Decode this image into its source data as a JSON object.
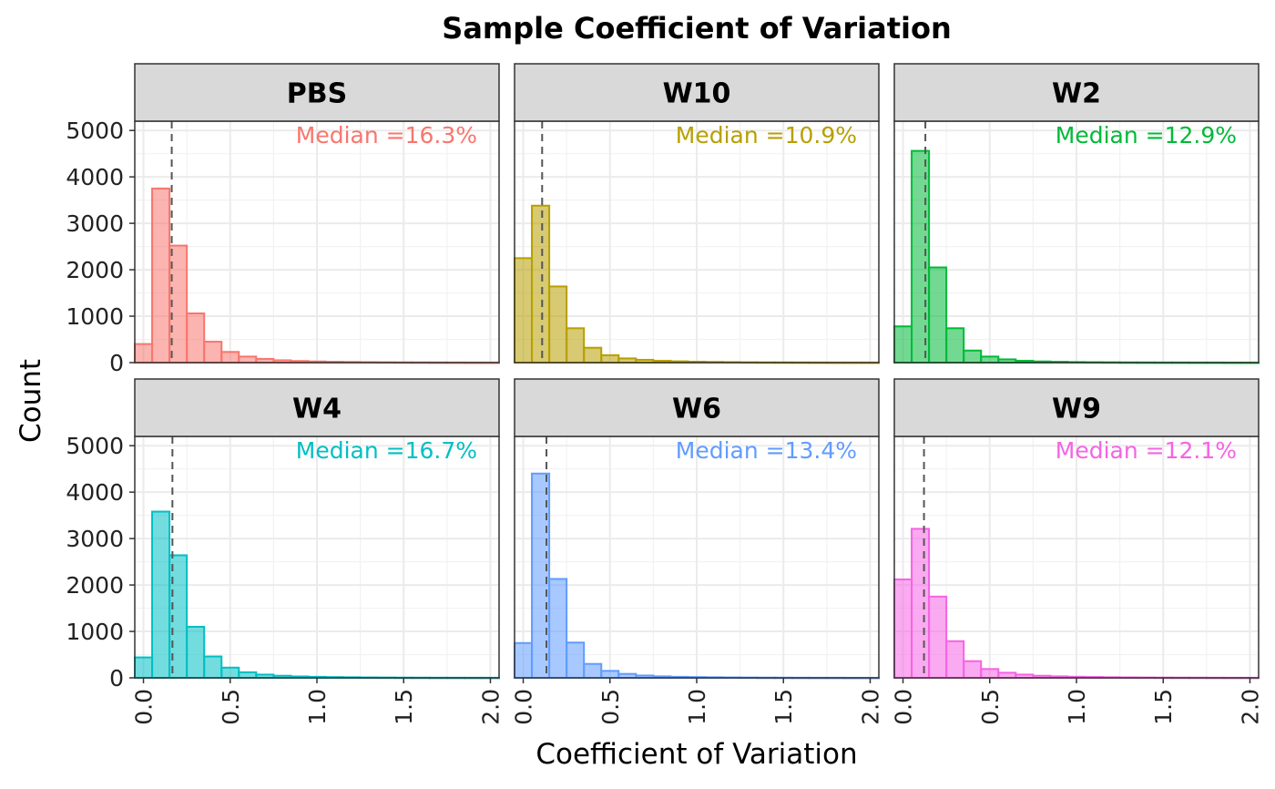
{
  "chart_data": {
    "type": "bar",
    "title": "Sample Coefficient of Variation",
    "xlabel": "Coefficient of Variation",
    "ylabel": "Count",
    "xlim": [
      -0.05,
      2.05
    ],
    "ylim": [
      0,
      5200
    ],
    "x_ticks": [
      "0.0",
      "0.5",
      "1.0",
      "1.5",
      "2.0"
    ],
    "x_tick_values": [
      0,
      0.5,
      1,
      1.5,
      2
    ],
    "y_ticks": [
      "0",
      "1000",
      "2000",
      "3000",
      "4000",
      "5000"
    ],
    "y_tick_values": [
      0,
      1000,
      2000,
      3000,
      4000,
      5000
    ],
    "bin_width": 0.1,
    "bin_centers": [
      0,
      0.1,
      0.2,
      0.3,
      0.4,
      0.5,
      0.6,
      0.7,
      0.8,
      0.9,
      1.0,
      1.1,
      1.2,
      1.3,
      1.4,
      1.5,
      1.6,
      1.7,
      1.8,
      1.9,
      2.0
    ],
    "grid": true,
    "panels": [
      {
        "name": "PBS",
        "color": "#F8766D",
        "median": 0.163,
        "median_label": "Median =16.3%",
        "values": [
          400,
          3750,
          2520,
          1060,
          450,
          230,
          130,
          80,
          50,
          35,
          25,
          18,
          14,
          10,
          8,
          6,
          5,
          4,
          3,
          2,
          2
        ]
      },
      {
        "name": "W10",
        "color": "#B79F00",
        "median": 0.109,
        "median_label": "Median =10.9%",
        "values": [
          2250,
          3380,
          1640,
          740,
          320,
          160,
          90,
          60,
          40,
          28,
          20,
          15,
          11,
          8,
          6,
          5,
          4,
          3,
          2,
          2,
          2
        ]
      },
      {
        "name": "W2",
        "color": "#00BA38",
        "median": 0.129,
        "median_label": "Median =12.9%",
        "values": [
          780,
          4560,
          2050,
          740,
          260,
          130,
          70,
          40,
          25,
          18,
          12,
          9,
          7,
          5,
          4,
          3,
          3,
          2,
          2,
          1,
          1
        ]
      },
      {
        "name": "W4",
        "color": "#00BFC4",
        "median": 0.167,
        "median_label": "Median =16.7%",
        "values": [
          440,
          3580,
          2640,
          1100,
          460,
          220,
          120,
          70,
          45,
          30,
          22,
          16,
          12,
          9,
          7,
          5,
          4,
          3,
          3,
          2,
          2
        ]
      },
      {
        "name": "W6",
        "color": "#619CFF",
        "median": 0.134,
        "median_label": "Median =13.4%",
        "values": [
          750,
          4400,
          2130,
          760,
          300,
          150,
          85,
          50,
          32,
          22,
          16,
          12,
          9,
          7,
          5,
          4,
          3,
          2,
          2,
          1,
          1
        ]
      },
      {
        "name": "W9",
        "color": "#F564E3",
        "median": 0.121,
        "median_label": "Median =12.1%",
        "values": [
          2120,
          3210,
          1750,
          790,
          360,
          190,
          110,
          70,
          45,
          32,
          24,
          18,
          13,
          10,
          8,
          6,
          5,
          4,
          3,
          2,
          2
        ]
      }
    ]
  }
}
